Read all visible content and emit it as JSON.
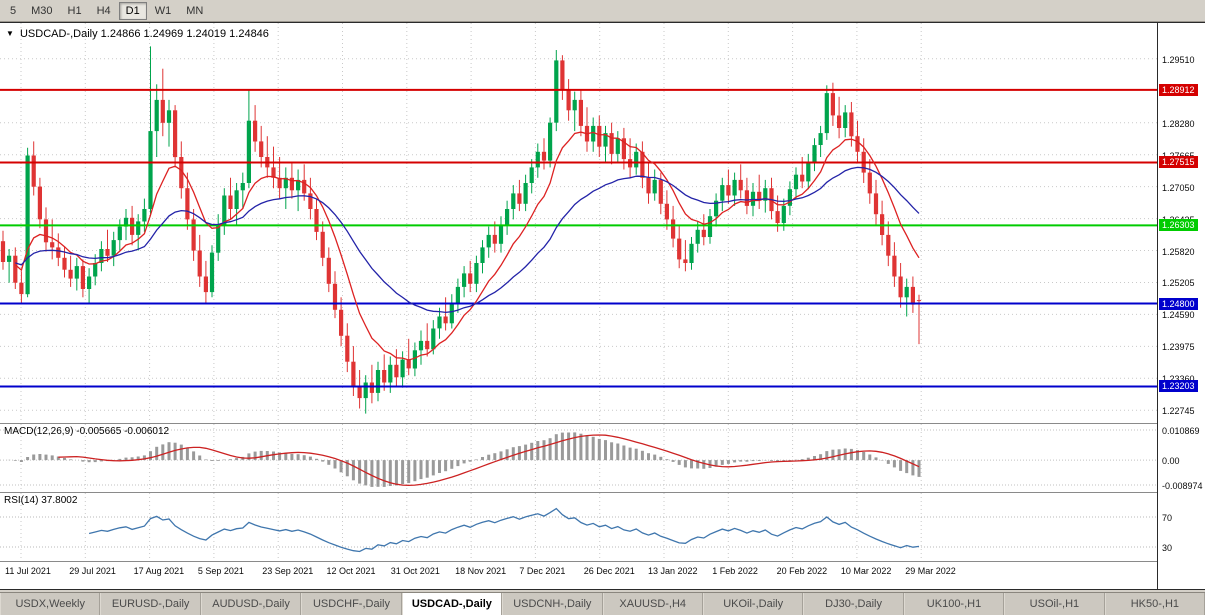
{
  "toolbar": {
    "timeframes": [
      {
        "label": "5",
        "active": false
      },
      {
        "label": "M30",
        "active": false
      },
      {
        "label": "H1",
        "active": false
      },
      {
        "label": "H4",
        "active": false
      },
      {
        "label": "D1",
        "active": true
      },
      {
        "label": "W1",
        "active": false
      },
      {
        "label": "MN",
        "active": false
      }
    ]
  },
  "chart_header": {
    "symbol": "USDCAD-,Daily",
    "open": "1.24866",
    "high": "1.24969",
    "low": "1.24019",
    "close": "1.24846"
  },
  "chart_data": {
    "type": "candlestick",
    "title": "USDCAD-,Daily",
    "ylim": [
      1.225,
      1.302
    ],
    "y_axis_labels": [
      "1.29510",
      "1.28280",
      "1.27665",
      "1.27050",
      "1.26435",
      "1.25820",
      "1.25205",
      "1.24590",
      "1.23975",
      "1.23360",
      "1.22745"
    ],
    "hlines": [
      {
        "price": 1.28912,
        "label": "1.28912",
        "color": "#d40000"
      },
      {
        "price": 1.27515,
        "label": "1.27515",
        "color": "#d40000"
      },
      {
        "price": 1.26303,
        "label": "1.26303",
        "color": "#00cc00"
      },
      {
        "price": 1.248,
        "label": "1.24800",
        "color": "#0000cc"
      },
      {
        "price": 1.23203,
        "label": "1.23203",
        "color": "#0000cc"
      }
    ],
    "x_labels": [
      "11 Jul 2021",
      "29 Jul 2021",
      "17 Aug 2021",
      "5 Sep 2021",
      "23 Sep 2021",
      "12 Oct 2021",
      "31 Oct 2021",
      "18 Nov 2021",
      "7 Dec 2021",
      "26 Dec 2021",
      "13 Jan 2022",
      "1 Feb 2022",
      "20 Feb 2022",
      "10 Mar 2022",
      "29 Mar 2022"
    ],
    "colors": {
      "up": "#00a44c",
      "down": "#df3434",
      "grid": "#c9c9c9",
      "ma_fast": "#dd2222",
      "ma_slow": "#2323a8",
      "macd_hist": "#9a9a9a",
      "macd_signal": "#cc2222",
      "rsi": "#3f76ad"
    },
    "ma_fast_period": 10,
    "ma_slow_period": 30,
    "candles": [
      [
        1.26,
        1.262,
        1.2545,
        1.256
      ],
      [
        1.256,
        1.2585,
        1.252,
        1.2572
      ],
      [
        1.2572,
        1.2588,
        1.2508,
        1.252
      ],
      [
        1.252,
        1.2542,
        1.2482,
        1.2498
      ],
      [
        1.2498,
        1.278,
        1.2492,
        1.2765
      ],
      [
        1.2765,
        1.2792,
        1.2688,
        1.2705
      ],
      [
        1.2705,
        1.2722,
        1.2625,
        1.2642
      ],
      [
        1.2642,
        1.2665,
        1.258,
        1.2598
      ],
      [
        1.2598,
        1.2642,
        1.2565,
        1.2588
      ],
      [
        1.2588,
        1.2615,
        1.2552,
        1.2568
      ],
      [
        1.2568,
        1.259,
        1.253,
        1.2545
      ],
      [
        1.2545,
        1.2572,
        1.2512,
        1.2528
      ],
      [
        1.2528,
        1.2568,
        1.2505,
        1.2552
      ],
      [
        1.2552,
        1.2565,
        1.2492,
        1.2508
      ],
      [
        1.2508,
        1.2548,
        1.2482,
        1.2532
      ],
      [
        1.2532,
        1.2575,
        1.2515,
        1.2558
      ],
      [
        1.2558,
        1.26,
        1.2542,
        1.2585
      ],
      [
        1.2585,
        1.2622,
        1.256,
        1.2572
      ],
      [
        1.2572,
        1.2618,
        1.2552,
        1.2602
      ],
      [
        1.2602,
        1.2642,
        1.2582,
        1.2628
      ],
      [
        1.2628,
        1.2662,
        1.2602,
        1.2645
      ],
      [
        1.2645,
        1.2668,
        1.2592,
        1.2612
      ],
      [
        1.2612,
        1.2652,
        1.2582,
        1.2638
      ],
      [
        1.2638,
        1.2682,
        1.2618,
        1.2662
      ],
      [
        1.2662,
        1.2975,
        1.2648,
        1.2812
      ],
      [
        1.2812,
        1.2902,
        1.2762,
        1.2872
      ],
      [
        1.2872,
        1.2932,
        1.2802,
        1.2828
      ],
      [
        1.2828,
        1.2872,
        1.2782,
        1.2852
      ],
      [
        1.2852,
        1.2862,
        1.2742,
        1.2762
      ],
      [
        1.2762,
        1.2792,
        1.2682,
        1.2702
      ],
      [
        1.2702,
        1.2732,
        1.2622,
        1.2642
      ],
      [
        1.2642,
        1.2662,
        1.2562,
        1.2582
      ],
      [
        1.2582,
        1.2612,
        1.2512,
        1.2532
      ],
      [
        1.2532,
        1.2562,
        1.2482,
        1.2502
      ],
      [
        1.2502,
        1.2592,
        1.2492,
        1.2578
      ],
      [
        1.2578,
        1.2652,
        1.2562,
        1.2632
      ],
      [
        1.2632,
        1.2702,
        1.2612,
        1.2688
      ],
      [
        1.2688,
        1.2722,
        1.2642,
        1.2662
      ],
      [
        1.2662,
        1.2712,
        1.2632,
        1.2698
      ],
      [
        1.2698,
        1.2732,
        1.2662,
        1.2712
      ],
      [
        1.2712,
        1.289,
        1.2702,
        1.2832
      ],
      [
        1.2832,
        1.2862,
        1.2772,
        1.2792
      ],
      [
        1.2792,
        1.2822,
        1.2742,
        1.2762
      ],
      [
        1.2762,
        1.2802,
        1.2722,
        1.2742
      ],
      [
        1.2742,
        1.2782,
        1.2702,
        1.2722
      ],
      [
        1.2722,
        1.2762,
        1.2682,
        1.2702
      ],
      [
        1.2702,
        1.2742,
        1.2662,
        1.2722
      ],
      [
        1.2722,
        1.2752,
        1.2682,
        1.2698
      ],
      [
        1.2698,
        1.2738,
        1.2658,
        1.2718
      ],
      [
        1.2718,
        1.2748,
        1.2678,
        1.2692
      ],
      [
        1.2692,
        1.2722,
        1.2642,
        1.2662
      ],
      [
        1.2662,
        1.2682,
        1.2602,
        1.2618
      ],
      [
        1.2618,
        1.2638,
        1.2552,
        1.2568
      ],
      [
        1.2568,
        1.2588,
        1.2502,
        1.2518
      ],
      [
        1.2518,
        1.2542,
        1.2452,
        1.2468
      ],
      [
        1.2468,
        1.2492,
        1.2398,
        1.2418
      ],
      [
        1.2418,
        1.2442,
        1.2348,
        1.2368
      ],
      [
        1.2368,
        1.2398,
        1.2302,
        1.2322
      ],
      [
        1.2322,
        1.2352,
        1.2278,
        1.2298
      ],
      [
        1.2298,
        1.2342,
        1.2268,
        1.2328
      ],
      [
        1.2328,
        1.2362,
        1.2288,
        1.2308
      ],
      [
        1.2308,
        1.2368,
        1.2292,
        1.2352
      ],
      [
        1.2352,
        1.2382,
        1.2312,
        1.2328
      ],
      [
        1.2328,
        1.2378,
        1.2308,
        1.2362
      ],
      [
        1.2362,
        1.2392,
        1.2322,
        1.2338
      ],
      [
        1.2338,
        1.2388,
        1.2318,
        1.2372
      ],
      [
        1.2372,
        1.2412,
        1.2342,
        1.2355
      ],
      [
        1.2355,
        1.2405,
        1.234,
        1.239
      ],
      [
        1.239,
        1.2428,
        1.2362,
        1.2408
      ],
      [
        1.2408,
        1.2442,
        1.2378,
        1.2392
      ],
      [
        1.2392,
        1.2448,
        1.2382,
        1.2432
      ],
      [
        1.2432,
        1.2472,
        1.2412,
        1.2455
      ],
      [
        1.2455,
        1.2492,
        1.2428,
        1.2442
      ],
      [
        1.2442,
        1.2498,
        1.2432,
        1.2482
      ],
      [
        1.2482,
        1.2528,
        1.2462,
        1.2512
      ],
      [
        1.2512,
        1.2552,
        1.2492,
        1.2538
      ],
      [
        1.2538,
        1.2562,
        1.2502,
        1.2518
      ],
      [
        1.2518,
        1.2572,
        1.2502,
        1.2558
      ],
      [
        1.2558,
        1.2602,
        1.2538,
        1.2588
      ],
      [
        1.2588,
        1.2628,
        1.2568,
        1.2612
      ],
      [
        1.2612,
        1.2638,
        1.2578,
        1.2595
      ],
      [
        1.2595,
        1.2648,
        1.2578,
        1.2632
      ],
      [
        1.2632,
        1.2678,
        1.2612,
        1.2662
      ],
      [
        1.2662,
        1.2708,
        1.2642,
        1.2692
      ],
      [
        1.2692,
        1.2718,
        1.2658,
        1.2672
      ],
      [
        1.2672,
        1.2728,
        1.2658,
        1.2712
      ],
      [
        1.2712,
        1.2758,
        1.2692,
        1.2742
      ],
      [
        1.2742,
        1.2788,
        1.2722,
        1.2772
      ],
      [
        1.2772,
        1.2798,
        1.2738,
        1.2755
      ],
      [
        1.2755,
        1.2838,
        1.2742,
        1.2828
      ],
      [
        1.2828,
        1.2968,
        1.2812,
        1.2948
      ],
      [
        1.2948,
        1.2958,
        1.2872,
        1.2892
      ],
      [
        1.2892,
        1.2912,
        1.2832,
        1.2852
      ],
      [
        1.2852,
        1.2888,
        1.2812,
        1.2872
      ],
      [
        1.2872,
        1.2892,
        1.2802,
        1.2822
      ],
      [
        1.2822,
        1.2858,
        1.2772,
        1.2792
      ],
      [
        1.2792,
        1.2838,
        1.2772,
        1.2822
      ],
      [
        1.2822,
        1.2842,
        1.2762,
        1.2782
      ],
      [
        1.2782,
        1.2822,
        1.2752,
        1.2808
      ],
      [
        1.2808,
        1.2828,
        1.2748,
        1.2768
      ],
      [
        1.2768,
        1.2812,
        1.2752,
        1.2798
      ],
      [
        1.2798,
        1.2818,
        1.2738,
        1.2758
      ],
      [
        1.2758,
        1.2798,
        1.2722,
        1.2742
      ],
      [
        1.2742,
        1.2788,
        1.2728,
        1.2772
      ],
      [
        1.2772,
        1.2792,
        1.2702,
        1.2722
      ],
      [
        1.2722,
        1.2752,
        1.2672,
        1.2692
      ],
      [
        1.2692,
        1.2738,
        1.2678,
        1.2718
      ],
      [
        1.2718,
        1.2732,
        1.2652,
        1.2672
      ],
      [
        1.2672,
        1.2698,
        1.2622,
        1.2642
      ],
      [
        1.2642,
        1.2668,
        1.2588,
        1.2605
      ],
      [
        1.2605,
        1.2632,
        1.2548,
        1.2565
      ],
      [
        1.2565,
        1.2602,
        1.2542,
        1.2558
      ],
      [
        1.2558,
        1.2608,
        1.2545,
        1.2595
      ],
      [
        1.2595,
        1.2638,
        1.2578,
        1.2622
      ],
      [
        1.2622,
        1.2652,
        1.2592,
        1.2608
      ],
      [
        1.2608,
        1.2662,
        1.2595,
        1.2648
      ],
      [
        1.2648,
        1.2692,
        1.2628,
        1.2678
      ],
      [
        1.2678,
        1.2722,
        1.2658,
        1.2708
      ],
      [
        1.2708,
        1.2738,
        1.2672,
        1.2688
      ],
      [
        1.2688,
        1.2732,
        1.2668,
        1.2718
      ],
      [
        1.2718,
        1.2748,
        1.2682,
        1.2698
      ],
      [
        1.2698,
        1.2722,
        1.2652,
        1.2668
      ],
      [
        1.2668,
        1.2712,
        1.2648,
        1.2695
      ],
      [
        1.2695,
        1.2728,
        1.2662,
        1.2678
      ],
      [
        1.2678,
        1.2718,
        1.2655,
        1.2702
      ],
      [
        1.2702,
        1.2722,
        1.2642,
        1.2658
      ],
      [
        1.2658,
        1.2688,
        1.2618,
        1.2635
      ],
      [
        1.2635,
        1.2682,
        1.262,
        1.2668
      ],
      [
        1.2668,
        1.2715,
        1.265,
        1.27
      ],
      [
        1.27,
        1.2742,
        1.2682,
        1.2728
      ],
      [
        1.2728,
        1.2762,
        1.2702,
        1.2715
      ],
      [
        1.2715,
        1.2768,
        1.27,
        1.2752
      ],
      [
        1.2752,
        1.2798,
        1.2735,
        1.2785
      ],
      [
        1.2785,
        1.2822,
        1.2762,
        1.2808
      ],
      [
        1.2808,
        1.29,
        1.2795,
        1.2885
      ],
      [
        1.2885,
        1.2905,
        1.2822,
        1.2842
      ],
      [
        1.2842,
        1.2878,
        1.2798,
        1.2818
      ],
      [
        1.2818,
        1.2862,
        1.28,
        1.2848
      ],
      [
        1.2848,
        1.2868,
        1.2782,
        1.2802
      ],
      [
        1.2802,
        1.2832,
        1.2752,
        1.2772
      ],
      [
        1.2772,
        1.2798,
        1.2712,
        1.2732
      ],
      [
        1.2732,
        1.2758,
        1.2672,
        1.2692
      ],
      [
        1.2692,
        1.2718,
        1.2632,
        1.2652
      ],
      [
        1.2652,
        1.2678,
        1.2592,
        1.2612
      ],
      [
        1.2612,
        1.2638,
        1.2552,
        1.2572
      ],
      [
        1.2572,
        1.2598,
        1.2512,
        1.2532
      ],
      [
        1.2532,
        1.2558,
        1.2472,
        1.2492
      ],
      [
        1.2492,
        1.2528,
        1.2455,
        1.2512
      ],
      [
        1.2512,
        1.2532,
        1.2462,
        1.2478
      ],
      [
        1.24866,
        1.24969,
        1.24019,
        1.24846
      ]
    ],
    "macd": {
      "name": "MACD(12,26,9)",
      "main_value": "-0.005665",
      "signal_value": "-0.006012",
      "axis_top": "0.010869",
      "axis_mid": "0.00",
      "axis_bottom": "-0.008974",
      "ylim": [
        -0.01151,
        0.01304
      ],
      "params": [
        12,
        26,
        9
      ]
    },
    "rsi": {
      "name": "RSI(14)",
      "value": "37.8002",
      "levels": [
        "70",
        "30"
      ],
      "period": 14
    }
  },
  "tabs": [
    {
      "label": "USDX,Weekly",
      "active": false
    },
    {
      "label": "EURUSD-,Daily",
      "active": false
    },
    {
      "label": "AUDUSD-,Daily",
      "active": false
    },
    {
      "label": "USDCHF-,Daily",
      "active": false
    },
    {
      "label": "USDCAD-,Daily",
      "active": true
    },
    {
      "label": "USDCNH-,Daily",
      "active": false
    },
    {
      "label": "XAUUSD-,H4",
      "active": false
    },
    {
      "label": "UKOil-,Daily",
      "active": false
    },
    {
      "label": "DJ30-,Daily",
      "active": false
    },
    {
      "label": "UK100-,H1",
      "active": false
    },
    {
      "label": "USOil-,H1",
      "active": false
    },
    {
      "label": "HK50-,H1",
      "active": false
    }
  ]
}
